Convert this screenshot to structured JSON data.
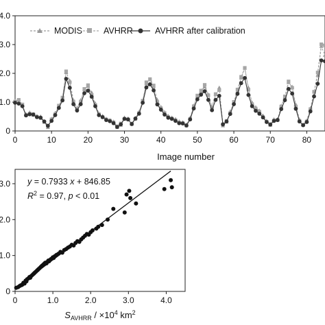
{
  "chart_data": [
    {
      "type": "line",
      "xlabel": "Image number",
      "xlim": [
        0,
        85
      ],
      "ylim": [
        0,
        4.0
      ],
      "x_ticks": [
        "0",
        "10",
        "20",
        "30",
        "40",
        "50",
        "60",
        "70",
        "80"
      ],
      "y_ticks": [
        "0",
        "1.0",
        "2.0",
        "3.0",
        "4.0"
      ],
      "legend_position": "top-left",
      "series": [
        {
          "name": "MODIS",
          "color": "#9a9a9a",
          "marker": "triangle",
          "values": [
            1.03,
            1.07,
            0.88,
            0.58,
            0.64,
            0.55,
            0.52,
            0.5,
            0.31,
            0.12,
            0.42,
            0.62,
            0.86,
            1.13,
            2.03,
            1.74,
            1.06,
            0.8,
            1.06,
            1.43,
            1.55,
            1.33,
            0.95,
            0.6,
            0.52,
            0.42,
            0.38,
            0.32,
            0.12,
            0.2,
            0.46,
            0.43,
            0.26,
            0.45,
            0.66,
            1.03,
            1.64,
            1.78,
            1.54,
            1.08,
            0.83,
            0.65,
            0.52,
            0.46,
            0.41,
            0.33,
            0.3,
            0.22,
            0.45,
            0.87,
            1.2,
            1.37,
            1.53,
            1.26,
            0.84,
            1.26,
            1.5,
            0.18,
            0.31,
            0.67,
            0.99,
            1.38,
            1.84,
            2.18,
            1.5,
            0.98,
            0.82,
            0.7,
            0.53,
            0.35,
            0.2,
            0.4,
            0.41,
            0.87,
            1.17,
            1.68,
            1.53,
            0.91,
            0.39,
            0.22,
            0.36,
            0.78,
            1.35,
            1.94,
            2.94,
            2.63,
            2.4,
            2.23
          ]
        },
        {
          "name": "AVHRR",
          "color": "#a6a6a6",
          "marker": "square",
          "values": [
            1.02,
            1.08,
            0.92,
            0.55,
            0.6,
            0.58,
            0.49,
            0.45,
            0.31,
            0.17,
            0.4,
            0.58,
            0.88,
            1.16,
            2.07,
            1.69,
            1.02,
            0.76,
            1.02,
            1.46,
            1.59,
            1.25,
            0.9,
            0.58,
            0.48,
            0.4,
            0.36,
            0.3,
            0.16,
            0.26,
            0.42,
            0.4,
            0.24,
            0.42,
            0.62,
            1.05,
            1.69,
            1.8,
            1.58,
            1.0,
            0.79,
            0.62,
            0.48,
            0.43,
            0.37,
            0.29,
            0.27,
            0.19,
            0.42,
            0.86,
            1.23,
            1.4,
            1.6,
            1.24,
            0.79,
            1.28,
            1.42,
            0.23,
            0.35,
            0.62,
            1.01,
            1.44,
            1.88,
            2.19,
            1.44,
            0.93,
            0.78,
            0.67,
            0.48,
            0.32,
            0.24,
            0.36,
            0.38,
            0.85,
            1.2,
            1.72,
            1.5,
            0.85,
            0.35,
            0.21,
            0.33,
            0.76,
            1.36,
            2.03,
            3.01,
            2.97,
            2.77,
            2.64
          ]
        },
        {
          "name": "AVHRR after calibration",
          "color": "#333333",
          "marker": "circle",
          "values": [
            0.98,
            0.95,
            0.86,
            0.54,
            0.58,
            0.57,
            0.48,
            0.46,
            0.33,
            0.18,
            0.35,
            0.55,
            0.8,
            1.06,
            1.81,
            1.5,
            0.93,
            0.71,
            0.93,
            1.31,
            1.4,
            1.19,
            0.86,
            0.55,
            0.48,
            0.38,
            0.34,
            0.27,
            0.14,
            0.23,
            0.42,
            0.4,
            0.24,
            0.43,
            0.6,
            0.98,
            1.51,
            1.62,
            1.41,
            0.92,
            0.74,
            0.57,
            0.46,
            0.42,
            0.35,
            0.27,
            0.26,
            0.19,
            0.4,
            0.78,
            1.1,
            1.26,
            1.38,
            1.08,
            0.72,
            1.08,
            1.22,
            0.23,
            0.33,
            0.59,
            0.93,
            1.29,
            1.66,
            1.84,
            1.25,
            0.86,
            0.7,
            0.6,
            0.47,
            0.31,
            0.22,
            0.35,
            0.38,
            0.76,
            1.07,
            1.46,
            1.3,
            0.77,
            0.33,
            0.2,
            0.31,
            0.68,
            1.2,
            1.64,
            2.45,
            2.42,
            2.31,
            2.16
          ]
        }
      ]
    },
    {
      "type": "scatter",
      "xlabel_main": "S",
      "xlabel_sub": "AVHRR",
      "xlabel_unit_pre": " / ×10",
      "xlabel_unit_sup": "4",
      "xlabel_unit_post": " km",
      "xlabel_unit_sup2": "2",
      "xlim": [
        0,
        4.5
      ],
      "ylim": [
        0,
        3.4
      ],
      "x_ticks": [
        "0",
        "1.0",
        "2.0",
        "3.0",
        "4.0"
      ],
      "y_ticks": [
        "0",
        "1.0",
        "2.0",
        "3.0"
      ],
      "annotations": {
        "eq_y": "y",
        "eq_mid": " = 0.7933 ",
        "eq_x": "x",
        "eq_tail": " + 846.85",
        "r_label": "R",
        "r_sup": "2",
        "r_tail": " = 0.97, ",
        "p_label": "p",
        "p_tail": " < 0.01"
      },
      "fit_line": {
        "slope": 0.7933,
        "intercept": 0.0847
      },
      "points": {
        "x": [
          0.03,
          0.08,
          0.12,
          0.15,
          0.18,
          0.2,
          0.22,
          0.25,
          0.28,
          0.3,
          0.32,
          0.35,
          0.38,
          0.4,
          0.42,
          0.45,
          0.48,
          0.5,
          0.52,
          0.55,
          0.58,
          0.6,
          0.62,
          0.65,
          0.68,
          0.7,
          0.72,
          0.75,
          0.78,
          0.8,
          0.83,
          0.85,
          0.88,
          0.9,
          0.93,
          0.95,
          0.98,
          1.0,
          1.02,
          1.05,
          1.08,
          1.1,
          1.15,
          1.2,
          1.25,
          1.3,
          1.35,
          1.4,
          1.45,
          1.5,
          1.55,
          1.6,
          1.65,
          1.7,
          1.75,
          1.8,
          1.85,
          1.9,
          1.95,
          2.0,
          2.05,
          2.15,
          2.2,
          2.3,
          2.45,
          2.6,
          2.9,
          2.95,
          3.02,
          3.05,
          3.2,
          3.95,
          4.12,
          4.15
        ],
        "y": [
          0.1,
          0.12,
          0.15,
          0.17,
          0.18,
          0.2,
          0.24,
          0.22,
          0.3,
          0.28,
          0.34,
          0.36,
          0.4,
          0.38,
          0.42,
          0.45,
          0.48,
          0.5,
          0.52,
          0.55,
          0.58,
          0.6,
          0.62,
          0.65,
          0.68,
          0.7,
          0.72,
          0.75,
          0.78,
          0.8,
          0.78,
          0.82,
          0.86,
          0.84,
          0.88,
          0.9,
          0.92,
          0.95,
          0.93,
          0.98,
          1.0,
          1.02,
          1.05,
          1.1,
          1.08,
          1.15,
          1.18,
          1.22,
          1.25,
          1.3,
          1.28,
          1.35,
          1.4,
          1.38,
          1.45,
          1.5,
          1.55,
          1.6,
          1.58,
          1.65,
          1.7,
          1.75,
          1.8,
          1.85,
          2.0,
          2.3,
          2.2,
          2.7,
          2.8,
          2.6,
          2.45,
          2.85,
          3.1,
          2.9
        ]
      }
    }
  ]
}
